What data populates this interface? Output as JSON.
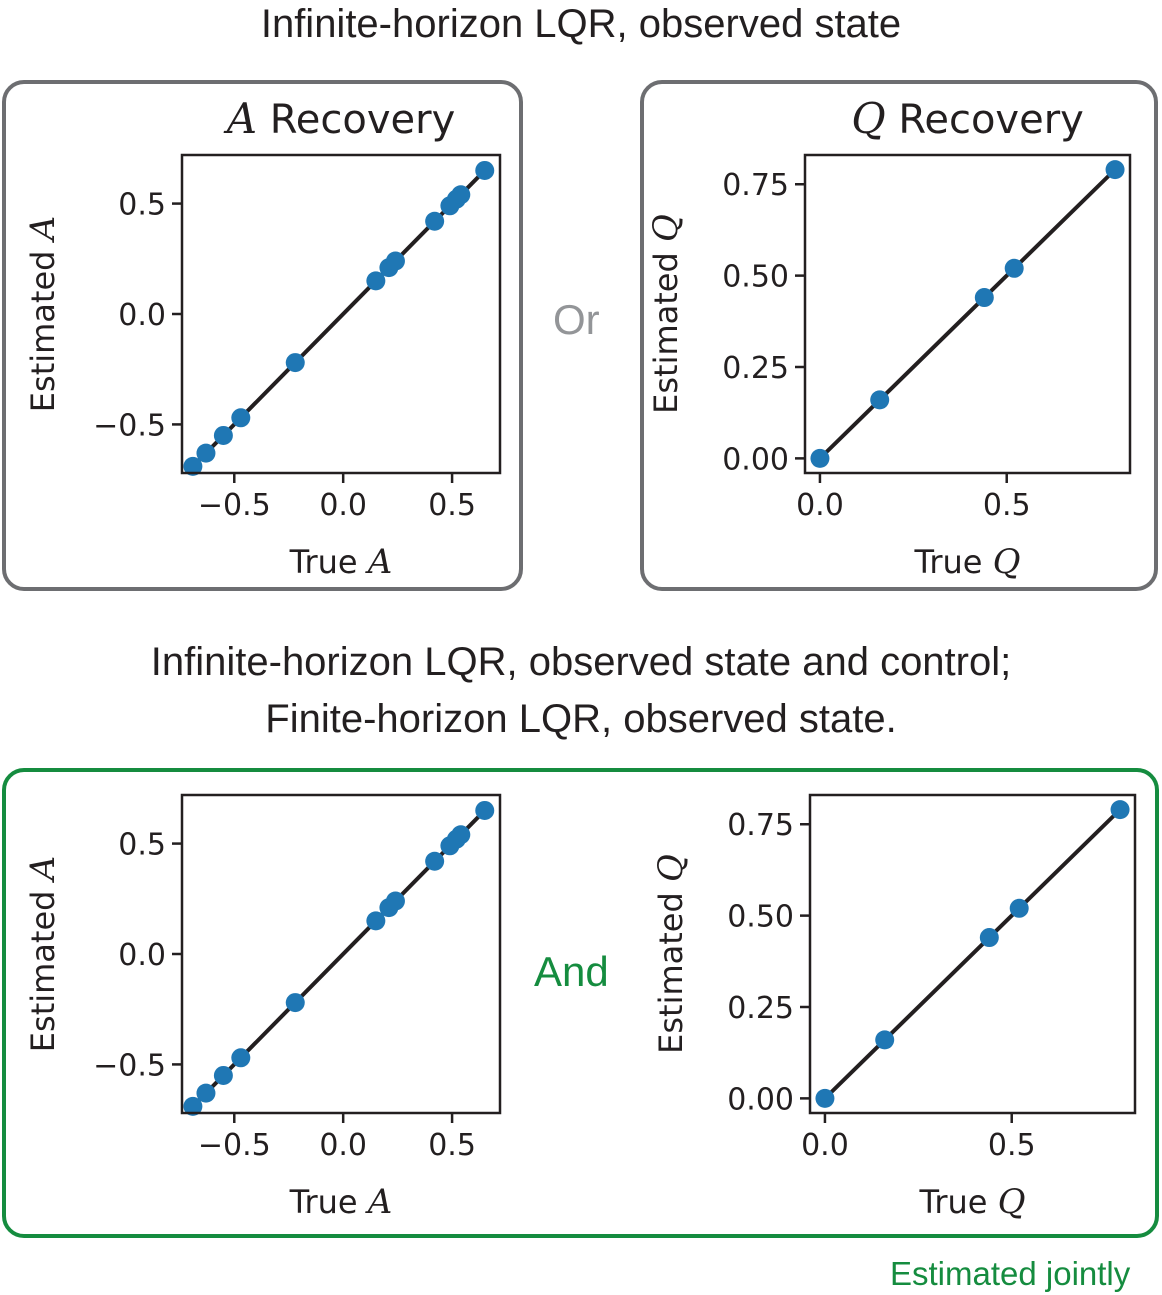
{
  "headings": {
    "top": "Infinite-horizon LQR, observed state",
    "bottom_line1": "Infinite-horizon LQR, observed state and control;",
    "bottom_line2": "Finite-horizon LQR, observed state."
  },
  "connectors": {
    "or": "Or",
    "and": "And"
  },
  "note": "Estimated jointly",
  "colors": {
    "points": "#1f77b4",
    "identity_line": "#231f20",
    "gray_box": "#6d6e71",
    "green_box": "#158c3f",
    "or_text": "#939598",
    "and_text": "#158c3f"
  },
  "chart_data": [
    {
      "type": "scatter",
      "title_symbol": "A",
      "title_text": "Recovery",
      "xlabel": "True",
      "xlabel_symbol": "A",
      "ylabel": "Estimated",
      "ylabel_symbol": "A",
      "xlim": [
        -0.74,
        0.72
      ],
      "ylim": [
        -0.72,
        0.72
      ],
      "xticks": [
        -0.5,
        0.0,
        0.5
      ],
      "yticks": [
        -0.5,
        0.0,
        0.5
      ],
      "xtick_labels": [
        "−0.5",
        "0.0",
        "0.5"
      ],
      "ytick_labels": [
        "−0.5",
        "0.0",
        "0.5"
      ],
      "identity_line": [
        -0.69,
        0.65
      ],
      "x": [
        -0.69,
        -0.63,
        -0.55,
        -0.47,
        -0.22,
        0.15,
        0.21,
        0.24,
        0.42,
        0.49,
        0.52,
        0.54,
        0.65
      ],
      "y": [
        -0.69,
        -0.63,
        -0.55,
        -0.47,
        -0.22,
        0.15,
        0.21,
        0.24,
        0.42,
        0.49,
        0.52,
        0.54,
        0.65
      ]
    },
    {
      "type": "scatter",
      "title_symbol": "Q",
      "title_text": "Recovery",
      "xlabel": "True",
      "xlabel_symbol": "Q",
      "ylabel": "Estimated",
      "ylabel_symbol": "Q",
      "xlim": [
        -0.04,
        0.83
      ],
      "ylim": [
        -0.04,
        0.83
      ],
      "xticks": [
        0.0,
        0.5
      ],
      "yticks": [
        0.0,
        0.25,
        0.5,
        0.75
      ],
      "xtick_labels": [
        "0.0",
        "0.5"
      ],
      "ytick_labels": [
        "0.00",
        "0.25",
        "0.50",
        "0.75"
      ],
      "identity_line": [
        0.0,
        0.79
      ],
      "x": [
        0.0,
        0.16,
        0.44,
        0.52,
        0.79
      ],
      "y": [
        0.0,
        0.16,
        0.44,
        0.52,
        0.79
      ]
    },
    {
      "type": "scatter",
      "xlabel": "True",
      "xlabel_symbol": "A",
      "ylabel": "Estimated",
      "ylabel_symbol": "A",
      "xlim": [
        -0.74,
        0.72
      ],
      "ylim": [
        -0.72,
        0.72
      ],
      "xticks": [
        -0.5,
        0.0,
        0.5
      ],
      "yticks": [
        -0.5,
        0.0,
        0.5
      ],
      "xtick_labels": [
        "−0.5",
        "0.0",
        "0.5"
      ],
      "ytick_labels": [
        "−0.5",
        "0.0",
        "0.5"
      ],
      "identity_line": [
        -0.69,
        0.65
      ],
      "x": [
        -0.69,
        -0.63,
        -0.55,
        -0.47,
        -0.22,
        0.15,
        0.21,
        0.24,
        0.42,
        0.49,
        0.52,
        0.54,
        0.65
      ],
      "y": [
        -0.69,
        -0.63,
        -0.55,
        -0.47,
        -0.22,
        0.15,
        0.21,
        0.24,
        0.42,
        0.49,
        0.52,
        0.54,
        0.65
      ]
    },
    {
      "type": "scatter",
      "xlabel": "True",
      "xlabel_symbol": "Q",
      "ylabel": "Estimated",
      "ylabel_symbol": "Q",
      "xlim": [
        -0.04,
        0.83
      ],
      "ylim": [
        -0.04,
        0.83
      ],
      "xticks": [
        0.0,
        0.5
      ],
      "yticks": [
        0.0,
        0.25,
        0.5,
        0.75
      ],
      "xtick_labels": [
        "0.0",
        "0.5"
      ],
      "ytick_labels": [
        "0.00",
        "0.25",
        "0.50",
        "0.75"
      ],
      "identity_line": [
        0.0,
        0.79
      ],
      "x": [
        0.0,
        0.16,
        0.44,
        0.52,
        0.79
      ],
      "y": [
        0.0,
        0.16,
        0.44,
        0.52,
        0.79
      ]
    }
  ]
}
